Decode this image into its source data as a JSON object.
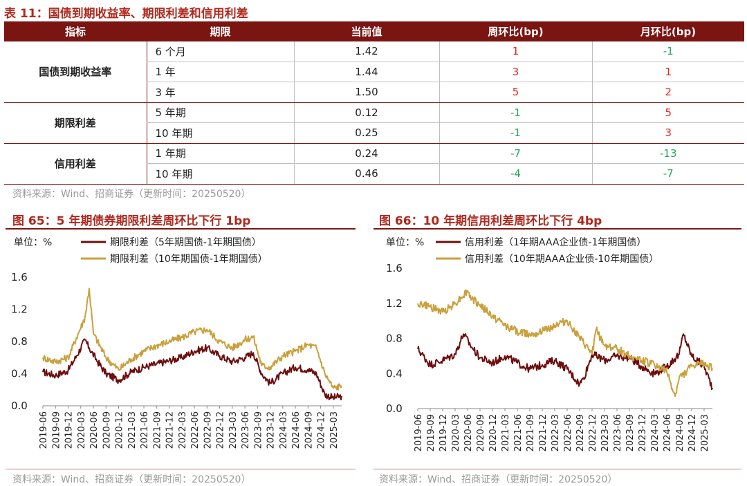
{
  "table": {
    "title": "表 11：国债到期收益率、期限利差和信用利差",
    "headers": [
      "指标",
      "期限",
      "当前值",
      "周环比(bp)",
      "月环比(bp)"
    ],
    "groups": [
      {
        "metric": "国债到期收益率",
        "rows": [
          {
            "period": "6 个月",
            "current": "1.42",
            "wow": "1",
            "mom": "-1"
          },
          {
            "period": "1 年",
            "current": "1.44",
            "wow": "3",
            "mom": "1"
          },
          {
            "period": "3 年",
            "current": "1.50",
            "wow": "5",
            "mom": "2"
          }
        ]
      },
      {
        "metric": "期限利差",
        "rows": [
          {
            "period": "5 年期",
            "current": "0.12",
            "wow": "-1",
            "mom": "5"
          },
          {
            "period": "10 年期",
            "current": "0.25",
            "wow": "-1",
            "mom": "3"
          }
        ]
      },
      {
        "metric": "信用利差",
        "rows": [
          {
            "period": "1 年期",
            "current": "0.24",
            "wow": "-7",
            "mom": "-13"
          },
          {
            "period": "10 年期",
            "current": "0.46",
            "wow": "-4",
            "mom": "-7"
          }
        ]
      }
    ],
    "source": "资料来源：Wind、招商证券（更新时间：20250520）"
  },
  "colors": {
    "dark_red": "#6e0d0d",
    "gold": "#c9a03c",
    "header_bg": "#7a1512",
    "title": "#b0281e",
    "up": "#e0271b",
    "down": "#27a35a"
  },
  "chart_data": [
    {
      "type": "line",
      "title": "图 65：5 年期债券期限利差周环比下行 1bp",
      "unit_label": "单位：%",
      "ylim": [
        0.0,
        1.6
      ],
      "yticks": [
        "0.0",
        "0.4",
        "0.8",
        "1.2",
        "1.6"
      ],
      "x_ticks": [
        "2019-06",
        "2019-09",
        "2019-12",
        "2020-03",
        "2020-06",
        "2020-09",
        "2020-12",
        "2021-03",
        "2021-06",
        "2021-09",
        "2021-12",
        "2022-03",
        "2022-06",
        "2022-09",
        "2022-12",
        "2023-03",
        "2023-06",
        "2023-09",
        "2023-12",
        "2024-03",
        "2024-06",
        "2024-09",
        "2024-12",
        "2025-03"
      ],
      "x_end": "2025-05",
      "legend_placement": "top",
      "series": [
        {
          "name": "期限利差（5年期国债-1年期国债）",
          "color": "#6e0d0d",
          "points": [
            [
              "2019-06",
              0.42
            ],
            [
              "2019-09",
              0.38
            ],
            [
              "2019-12",
              0.44
            ],
            [
              "2020-02",
              0.62
            ],
            [
              "2020-04",
              0.82
            ],
            [
              "2020-05",
              0.72
            ],
            [
              "2020-07",
              0.55
            ],
            [
              "2020-09",
              0.4
            ],
            [
              "2020-12",
              0.32
            ],
            [
              "2021-03",
              0.42
            ],
            [
              "2021-06",
              0.48
            ],
            [
              "2021-09",
              0.52
            ],
            [
              "2021-12",
              0.56
            ],
            [
              "2022-03",
              0.6
            ],
            [
              "2022-06",
              0.68
            ],
            [
              "2022-09",
              0.72
            ],
            [
              "2022-12",
              0.62
            ],
            [
              "2023-03",
              0.55
            ],
            [
              "2023-06",
              0.6
            ],
            [
              "2023-08",
              0.66
            ],
            [
              "2023-10",
              0.4
            ],
            [
              "2023-12",
              0.28
            ],
            [
              "2024-03",
              0.4
            ],
            [
              "2024-06",
              0.48
            ],
            [
              "2024-09",
              0.45
            ],
            [
              "2024-11",
              0.4
            ],
            [
              "2025-01",
              0.14
            ],
            [
              "2025-03",
              0.1
            ],
            [
              "2025-05",
              0.12
            ]
          ]
        },
        {
          "name": "期限利差（10年期国债-1年期国债）",
          "color": "#c9a03c",
          "points": [
            [
              "2019-06",
              0.6
            ],
            [
              "2019-09",
              0.55
            ],
            [
              "2019-12",
              0.6
            ],
            [
              "2020-02",
              0.85
            ],
            [
              "2020-04",
              1.1
            ],
            [
              "2020-05",
              1.46
            ],
            [
              "2020-06",
              0.9
            ],
            [
              "2020-09",
              0.6
            ],
            [
              "2020-12",
              0.45
            ],
            [
              "2021-03",
              0.58
            ],
            [
              "2021-06",
              0.68
            ],
            [
              "2021-09",
              0.75
            ],
            [
              "2021-12",
              0.8
            ],
            [
              "2022-03",
              0.85
            ],
            [
              "2022-06",
              0.92
            ],
            [
              "2022-09",
              0.95
            ],
            [
              "2022-12",
              0.8
            ],
            [
              "2023-03",
              0.72
            ],
            [
              "2023-06",
              0.82
            ],
            [
              "2023-08",
              0.86
            ],
            [
              "2023-10",
              0.5
            ],
            [
              "2023-12",
              0.48
            ],
            [
              "2024-03",
              0.62
            ],
            [
              "2024-06",
              0.68
            ],
            [
              "2024-09",
              0.76
            ],
            [
              "2024-11",
              0.72
            ],
            [
              "2025-01",
              0.4
            ],
            [
              "2025-03",
              0.22
            ],
            [
              "2025-05",
              0.25
            ]
          ]
        }
      ],
      "source": "资料来源：Wind、招商证券（更新时间：20250520）"
    },
    {
      "type": "line",
      "title": "图 66：10 年期信用利差周环比下行 4bp",
      "unit_label": "单位：%",
      "ylim": [
        0.0,
        1.6
      ],
      "yticks": [
        "0.0",
        "0.4",
        "0.8",
        "1.2",
        "1.6"
      ],
      "x_ticks": [
        "2019-06",
        "2019-09",
        "2019-12",
        "2020-03",
        "2020-06",
        "2020-09",
        "2020-12",
        "2021-03",
        "2021-06",
        "2021-09",
        "2021-12",
        "2022-03",
        "2022-06",
        "2022-09",
        "2022-12",
        "2023-03",
        "2023-06",
        "2023-09",
        "2023-12",
        "2024-03",
        "2024-06",
        "2024-09",
        "2024-12",
        "2025-03"
      ],
      "x_end": "2025-05",
      "legend_placement": "top",
      "series": [
        {
          "name": "信用利差（1年期AAA企业债-1年期国债）",
          "color": "#6e0d0d",
          "points": [
            [
              "2019-06",
              0.68
            ],
            [
              "2019-09",
              0.5
            ],
            [
              "2019-12",
              0.55
            ],
            [
              "2020-03",
              0.62
            ],
            [
              "2020-05",
              0.85
            ],
            [
              "2020-07",
              0.7
            ],
            [
              "2020-09",
              0.58
            ],
            [
              "2020-12",
              0.52
            ],
            [
              "2021-03",
              0.6
            ],
            [
              "2021-06",
              0.52
            ],
            [
              "2021-09",
              0.45
            ],
            [
              "2021-12",
              0.5
            ],
            [
              "2022-03",
              0.55
            ],
            [
              "2022-06",
              0.45
            ],
            [
              "2022-09",
              0.28
            ],
            [
              "2022-10",
              0.35
            ],
            [
              "2022-12",
              0.62
            ],
            [
              "2023-03",
              0.55
            ],
            [
              "2023-06",
              0.6
            ],
            [
              "2023-09",
              0.58
            ],
            [
              "2023-12",
              0.48
            ],
            [
              "2024-03",
              0.4
            ],
            [
              "2024-06",
              0.48
            ],
            [
              "2024-09",
              0.62
            ],
            [
              "2024-10",
              0.85
            ],
            [
              "2024-12",
              0.6
            ],
            [
              "2025-03",
              0.48
            ],
            [
              "2025-05",
              0.24
            ]
          ]
        },
        {
          "name": "信用利差（10年期AAA企业债-10年期国债）",
          "color": "#c9a03c",
          "points": [
            [
              "2019-06",
              1.2
            ],
            [
              "2019-09",
              1.16
            ],
            [
              "2019-12",
              1.1
            ],
            [
              "2020-03",
              1.2
            ],
            [
              "2020-06",
              1.34
            ],
            [
              "2020-07",
              1.25
            ],
            [
              "2020-09",
              1.18
            ],
            [
              "2020-12",
              1.05
            ],
            [
              "2021-03",
              0.95
            ],
            [
              "2021-06",
              0.88
            ],
            [
              "2021-09",
              0.85
            ],
            [
              "2021-12",
              0.88
            ],
            [
              "2022-03",
              0.95
            ],
            [
              "2022-06",
              1.0
            ],
            [
              "2022-09",
              0.8
            ],
            [
              "2022-12",
              0.62
            ],
            [
              "2023-01",
              0.9
            ],
            [
              "2023-03",
              0.72
            ],
            [
              "2023-06",
              0.68
            ],
            [
              "2023-09",
              0.6
            ],
            [
              "2023-12",
              0.55
            ],
            [
              "2024-03",
              0.5
            ],
            [
              "2024-06",
              0.42
            ],
            [
              "2024-08",
              0.14
            ],
            [
              "2024-09",
              0.35
            ],
            [
              "2024-12",
              0.48
            ],
            [
              "2025-03",
              0.52
            ],
            [
              "2025-05",
              0.46
            ]
          ]
        }
      ],
      "source": "资料来源：Wind、招商证券（更新时间：20250520）"
    }
  ]
}
